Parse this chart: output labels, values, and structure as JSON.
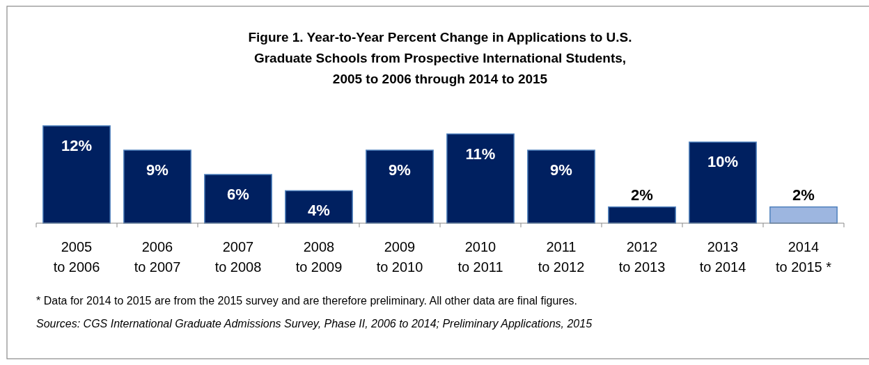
{
  "chart_data": {
    "type": "bar",
    "title": "Figure 1. Year-to-Year Percent Change in Applications to U.S.\nGraduate Schools from Prospective International Students,\n2005 to 2006 through 2014 to 2015",
    "categories": [
      "2005\nto 2006",
      "2006\nto 2007",
      "2007\nto 2008",
      "2008\nto 2009",
      "2009\nto 2010",
      "2010\nto 2011",
      "2011\nto 2012",
      "2012\nto 2013",
      "2013\nto 2014",
      "2014\nto 2015 *"
    ],
    "values": [
      12,
      9,
      6,
      4,
      9,
      11,
      9,
      2,
      10,
      2
    ],
    "value_labels": [
      "12%",
      "9%",
      "6%",
      "4%",
      "9%",
      "11%",
      "9%",
      "2%",
      "10%",
      "2%"
    ],
    "colors": [
      "#002060",
      "#002060",
      "#002060",
      "#002060",
      "#002060",
      "#002060",
      "#002060",
      "#002060",
      "#002060",
      "#9db6e0"
    ],
    "annotations": [
      "* Data for 2014 to 2015 are from the 2015 survey and are therefore preliminary. All other data are final figures.",
      "Sources: CGS International Graduate Admissions Survey, Phase II, 2006 to 2014; Preliminary Applications, 2015"
    ]
  }
}
